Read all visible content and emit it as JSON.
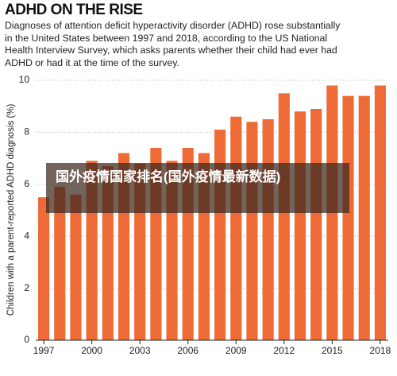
{
  "chart_data": {
    "type": "bar",
    "title": "ADHD ON THE RISE",
    "subtitle": "Diagnoses of attention deficit hyperactivity disorder (ADHD) rose substantially in the United States between 1997 and 2018, according to the US National Health Interview Survey, which asks parents whether their child had ever had ADHD or had it at the time of the survey.",
    "y_label": "Children with a parent-reported ADHD diagnosis (%)",
    "categories": [
      "1997",
      null,
      null,
      "2000",
      null,
      null,
      "2003",
      null,
      null,
      "2006",
      null,
      null,
      "2009",
      null,
      null,
      "2012",
      null,
      null,
      "2015",
      null,
      null,
      "2018"
    ],
    "values": [
      5.5,
      5.9,
      5.6,
      6.9,
      6.7,
      7.2,
      6.8,
      7.4,
      6.9,
      7.4,
      7.2,
      8.1,
      8.6,
      8.4,
      8.5,
      9.5,
      8.8,
      8.9,
      9.8,
      9.4,
      9.4,
      9.8
    ],
    "color": "#ee6a37",
    "ylim": [
      0,
      10
    ],
    "yticks": [
      0,
      2,
      4,
      6,
      8,
      10
    ],
    "grid": true
  },
  "overlay_text": "国外疫情国家排名(国外疫情最新数据)"
}
